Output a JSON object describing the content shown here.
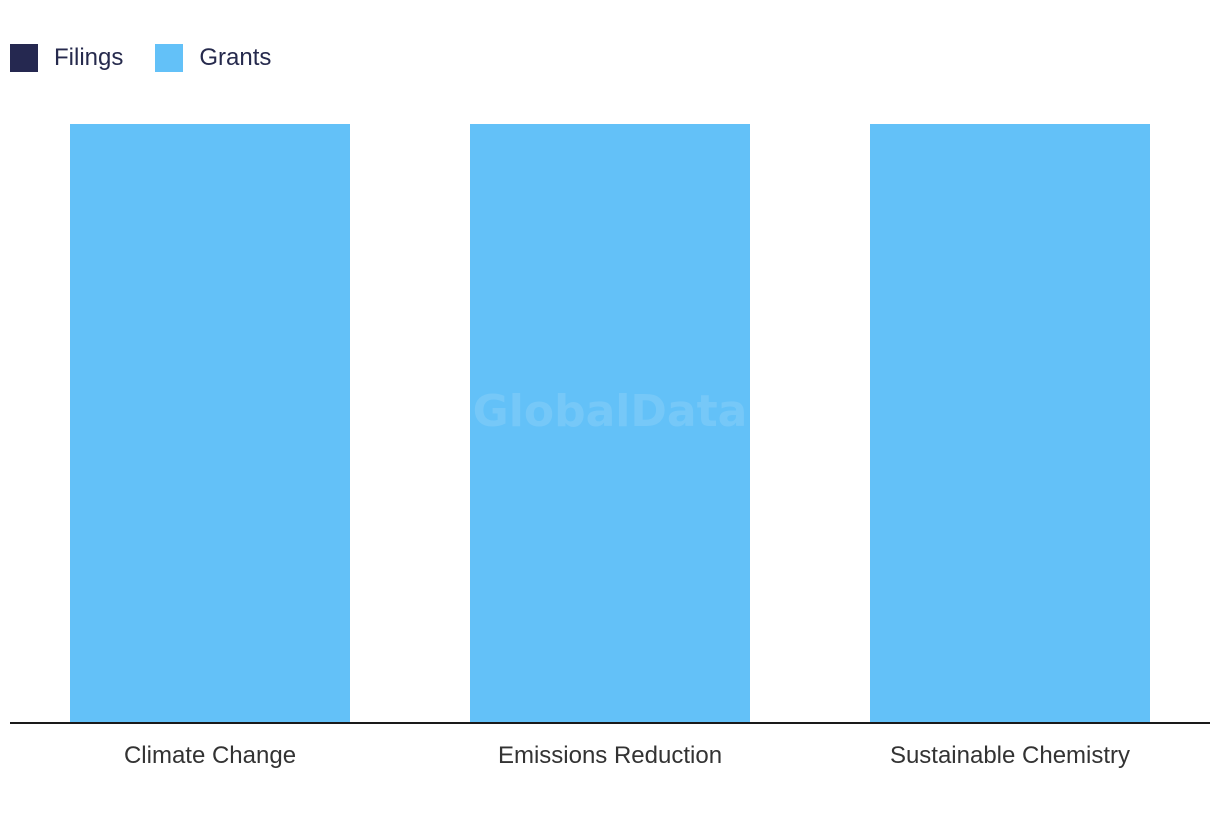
{
  "legend": {
    "items": [
      {
        "label": "Filings",
        "color": "#252850"
      },
      {
        "label": "Grants",
        "color": "#63c1f8"
      }
    ]
  },
  "watermark": "GlobalData",
  "chart_data": {
    "type": "bar",
    "categories": [
      "Climate Change",
      "Emissions Reduction",
      "Sustainable Chemistry"
    ],
    "series": [
      {
        "name": "Filings",
        "color": "#252850",
        "values": [
          0,
          0,
          0
        ]
      },
      {
        "name": "Grants",
        "color": "#63c1f8",
        "values": [
          1,
          1,
          1
        ]
      }
    ],
    "ylim": [
      0,
      1
    ],
    "grid": false,
    "legend_position": "top-left",
    "title": "",
    "xlabel": "",
    "ylabel": ""
  }
}
